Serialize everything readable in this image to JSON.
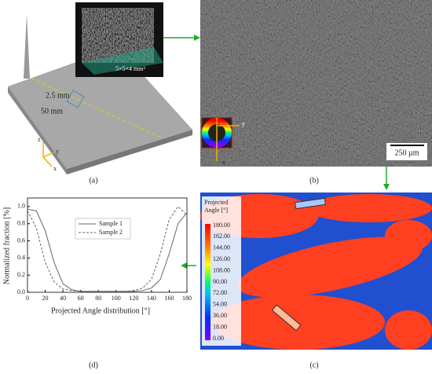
{
  "panel_a": {
    "label": "(a)",
    "dim_1": "2.5 mm",
    "dim_2": "50 mm",
    "volume": "5×5×4 mm³",
    "axis_z": "z",
    "axis_y": "y",
    "axis_x": "x"
  },
  "panel_b": {
    "label": "(b)",
    "scale_bar": "250 µm",
    "axis_y": "y",
    "axis_x": "x"
  },
  "panel_c": {
    "label": "(c)",
    "colorbar_title_1": "Projected",
    "colorbar_title_2": "Angle [°]",
    "colorbar_labels": [
      "180.00",
      "162.00",
      "144.00",
      "126.00",
      "108.00",
      "90.00",
      "72.00",
      "54.00",
      "36.00",
      "18.00",
      "0.00"
    ]
  },
  "panel_d": {
    "label": "(d)"
  },
  "chart_data": {
    "type": "line",
    "xlabel": "Projected Angle distribution [°]",
    "ylabel": "Normalized fraction [%]",
    "x": [
      0,
      10,
      20,
      30,
      40,
      50,
      60,
      70,
      80,
      90,
      100,
      110,
      120,
      130,
      140,
      150,
      160,
      170,
      180
    ],
    "series": [
      {
        "name": "Sample 1",
        "color": "#666666",
        "dash": "none",
        "values": [
          0.97,
          0.95,
          0.72,
          0.35,
          0.1,
          0.03,
          0.01,
          0.01,
          0.01,
          0.01,
          0.01,
          0.01,
          0.01,
          0.02,
          0.05,
          0.15,
          0.45,
          0.8,
          0.93
        ]
      },
      {
        "name": "Sample 2",
        "color": "#666666",
        "dash": "3,2",
        "values": [
          0.95,
          0.75,
          0.35,
          0.12,
          0.04,
          0.02,
          0.01,
          0.01,
          0.01,
          0.01,
          0.01,
          0.01,
          0.02,
          0.05,
          0.15,
          0.45,
          0.85,
          1.0,
          0.9
        ]
      }
    ],
    "xlim": [
      0,
      180
    ],
    "xticks": [
      0,
      20,
      40,
      60,
      80,
      100,
      120,
      140,
      160,
      180
    ],
    "ylim": [
      0,
      1.1
    ],
    "yticks": [
      {
        "value": 0,
        "label": "0.0"
      },
      0.2,
      0.4,
      0.6,
      0.8,
      {
        "value": 1,
        "label": "1.0"
      }
    ]
  }
}
